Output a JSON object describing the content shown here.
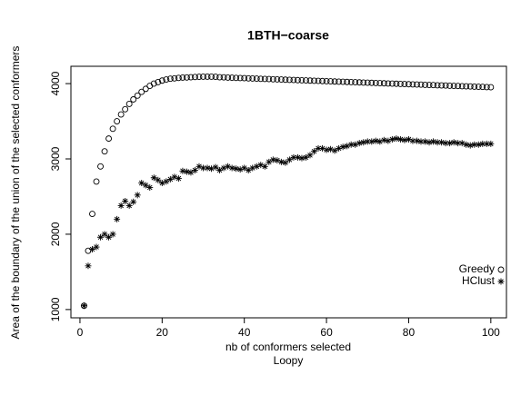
{
  "chart_data": {
    "type": "scatter",
    "title": "1BTH−coarse",
    "xlabel": "nb of conformers selected",
    "subtitle": "Loopy",
    "ylabel": "Area of the boundary of the union of the selected conformers",
    "x": [
      1,
      2,
      3,
      4,
      5,
      6,
      7,
      8,
      9,
      10,
      11,
      12,
      13,
      14,
      15,
      16,
      17,
      18,
      19,
      20,
      21,
      22,
      23,
      24,
      25,
      26,
      27,
      28,
      29,
      30,
      31,
      32,
      33,
      34,
      35,
      36,
      37,
      38,
      39,
      40,
      41,
      42,
      43,
      44,
      45,
      46,
      47,
      48,
      49,
      50,
      51,
      52,
      53,
      54,
      55,
      56,
      57,
      58,
      59,
      60,
      61,
      62,
      63,
      64,
      65,
      66,
      67,
      68,
      69,
      70,
      71,
      72,
      73,
      74,
      75,
      76,
      77,
      78,
      79,
      80,
      81,
      82,
      83,
      84,
      85,
      86,
      87,
      88,
      89,
      90,
      91,
      92,
      93,
      94,
      95,
      96,
      97,
      98,
      99,
      100
    ],
    "series": [
      {
        "name": "Greedy",
        "color": "#000000",
        "marker": "circle",
        "values": [
          1050,
          1780,
          2270,
          2700,
          2900,
          3100,
          3270,
          3400,
          3500,
          3590,
          3660,
          3730,
          3790,
          3840,
          3890,
          3930,
          3970,
          4000,
          4020,
          4040,
          4055,
          4065,
          4070,
          4075,
          4080,
          4082,
          4085,
          4088,
          4090,
          4092,
          4092,
          4092,
          4090,
          4085,
          4083,
          4080,
          4078,
          4076,
          4074,
          4072,
          4070,
          4068,
          4066,
          4064,
          4062,
          4060,
          4058,
          4056,
          4054,
          4052,
          4050,
          4048,
          4046,
          4044,
          4042,
          4040,
          4038,
          4036,
          4034,
          4032,
          4030,
          4028,
          4026,
          4024,
          4022,
          4020,
          4018,
          4016,
          4014,
          4012,
          4010,
          4008,
          4006,
          4004,
          4002,
          4000,
          3998,
          3996,
          3994,
          3992,
          3990,
          3988,
          3986,
          3984,
          3982,
          3980,
          3978,
          3976,
          3974,
          3972,
          3970,
          3968,
          3966,
          3964,
          3962,
          3960,
          3958,
          3956,
          3954,
          3952
        ]
      },
      {
        "name": "HClust",
        "color": "#000000",
        "marker": "asterisk",
        "values": [
          1050,
          1580,
          1800,
          1830,
          1960,
          2000,
          1960,
          2000,
          2200,
          2380,
          2440,
          2380,
          2430,
          2520,
          2680,
          2650,
          2620,
          2750,
          2720,
          2680,
          2700,
          2730,
          2760,
          2740,
          2840,
          2830,
          2820,
          2850,
          2900,
          2880,
          2880,
          2870,
          2890,
          2850,
          2880,
          2900,
          2880,
          2870,
          2860,
          2880,
          2850,
          2880,
          2900,
          2920,
          2900,
          2960,
          2990,
          2980,
          2960,
          2950,
          2990,
          3020,
          3020,
          3010,
          3020,
          3050,
          3100,
          3140,
          3140,
          3120,
          3130,
          3110,
          3140,
          3160,
          3170,
          3190,
          3190,
          3210,
          3220,
          3230,
          3230,
          3240,
          3230,
          3250,
          3240,
          3260,
          3270,
          3260,
          3250,
          3260,
          3240,
          3240,
          3230,
          3230,
          3220,
          3230,
          3220,
          3220,
          3210,
          3210,
          3220,
          3210,
          3210,
          3190,
          3180,
          3190,
          3190,
          3200,
          3200,
          3200
        ]
      }
    ],
    "xlim": [
      -2.2,
      103.8
    ],
    "xticks": [
      0,
      20,
      40,
      60,
      80,
      100
    ],
    "ylim": [
      890,
      4230
    ],
    "yticks": [
      1000,
      2000,
      3000,
      4000
    ],
    "legend": "bottom-right"
  }
}
